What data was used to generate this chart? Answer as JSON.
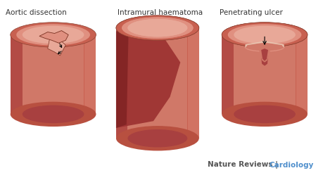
{
  "bg_color": "#ffffff",
  "title1": "Aortic dissection",
  "title2": "Intramural haematoma",
  "title3": "Penetrating ulcer",
  "footer_text": "Nature Reviews | ",
  "footer_highlight": "Cardiology",
  "footer_color": "#4f8fcc",
  "footer_base_color": "#555555",
  "wall_dark": "#a84040",
  "wall_mid": "#c86050",
  "wall_light": "#e09080",
  "lumen_top": "#e8a898",
  "lumen_inner": "#d07868",
  "bottom_band": "#b85040",
  "label_fontsize": 7.5,
  "footer_fontsize": 7.5
}
